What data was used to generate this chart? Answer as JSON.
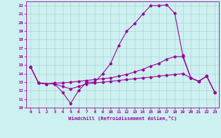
{
  "title": "",
  "xlabel": "Windchill (Refroidissement éolien,°C)",
  "ylabel": "",
  "bg_color": "#cdf0f0",
  "line_color": "#990099",
  "xlim": [
    -0.5,
    23.5
  ],
  "ylim": [
    10,
    22.5
  ],
  "yticks": [
    10,
    11,
    12,
    13,
    14,
    15,
    16,
    17,
    18,
    19,
    20,
    21,
    22
  ],
  "xticks": [
    0,
    1,
    2,
    3,
    4,
    5,
    6,
    7,
    8,
    9,
    10,
    11,
    12,
    13,
    14,
    15,
    16,
    17,
    18,
    19,
    20,
    21,
    22,
    23
  ],
  "y_arch": [
    14.8,
    12.9,
    12.8,
    12.8,
    11.8,
    10.5,
    12.0,
    13.0,
    13.0,
    14.0,
    15.2,
    17.3,
    19.0,
    19.9,
    21.0,
    22.0,
    22.0,
    22.1,
    21.1,
    16.2,
    13.5,
    13.1,
    13.7,
    11.8
  ],
  "y_flat": [
    14.8,
    12.9,
    12.8,
    12.9,
    12.9,
    13.0,
    13.1,
    13.2,
    13.3,
    13.4,
    13.5,
    13.7,
    13.9,
    14.2,
    14.5,
    14.9,
    15.2,
    15.7,
    16.0,
    16.0,
    13.5,
    13.1,
    13.7,
    11.8
  ],
  "y_low": [
    14.8,
    12.9,
    12.8,
    12.8,
    12.5,
    12.2,
    12.5,
    12.8,
    12.9,
    13.0,
    13.1,
    13.2,
    13.3,
    13.4,
    13.5,
    13.6,
    13.7,
    13.8,
    13.9,
    14.0,
    13.5,
    13.1,
    13.7,
    11.8
  ]
}
